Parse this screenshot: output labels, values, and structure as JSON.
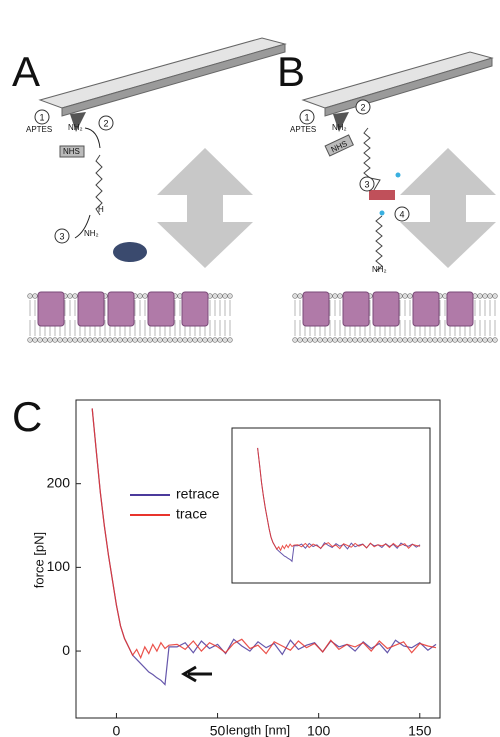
{
  "panels": {
    "A": {
      "label": "A",
      "steps": [
        "1",
        "2",
        "3"
      ],
      "aptes": "APTES",
      "amine": "NH₂",
      "nhs": "NHS",
      "aldehyde": "H",
      "protein_amine": "NH₂"
    },
    "B": {
      "label": "B",
      "steps": [
        "1",
        "2",
        "3",
        "4"
      ],
      "aptes": "APTES",
      "amine": "NH₂",
      "nhs": "NHS",
      "end_amine": "NH₂"
    },
    "C": {
      "label": "C"
    }
  },
  "chart_data": {
    "type": "line",
    "xlabel": "length [nm]",
    "ylabel": "force [pN]",
    "x": [
      -12,
      -10,
      -8,
      -6,
      -4,
      -2,
      0,
      2,
      4,
      6,
      8,
      10,
      12,
      14,
      16,
      18,
      20,
      22,
      24,
      26,
      30,
      34,
      38,
      42,
      46,
      50,
      54,
      58,
      62,
      66,
      70,
      74,
      78,
      82,
      86,
      90,
      94,
      98,
      102,
      106,
      110,
      114,
      118,
      122,
      126,
      130,
      134,
      138,
      142,
      146,
      150,
      154,
      158
    ],
    "series": [
      {
        "name": "retrace",
        "color": "#4b3a9c",
        "values": [
          290,
          240,
          190,
          150,
          115,
          85,
          55,
          30,
          15,
          5,
          -5,
          -10,
          -15,
          -20,
          -25,
          -28,
          -32,
          -35,
          -40,
          5,
          5,
          10,
          -2,
          12,
          3,
          8,
          -3,
          14,
          6,
          0,
          11,
          4,
          9,
          -4,
          13,
          2,
          7,
          10,
          -1,
          12,
          5,
          8,
          0,
          11,
          3,
          9,
          -2,
          13,
          6,
          4,
          10,
          1,
          8
        ]
      },
      {
        "name": "trace",
        "color": "#e8342c",
        "values": [
          290,
          240,
          190,
          150,
          115,
          85,
          55,
          30,
          15,
          5,
          -5,
          2,
          -8,
          5,
          -3,
          8,
          0,
          10,
          3,
          7,
          8,
          2,
          12,
          0,
          10,
          5,
          -2,
          9,
          14,
          3,
          7,
          -3,
          11,
          6,
          1,
          12,
          4,
          9,
          -1,
          13,
          2,
          8,
          5,
          10,
          0,
          12,
          3,
          7,
          11,
          -2,
          9,
          6,
          4
        ]
      }
    ],
    "xlim": [
      -20,
      160
    ],
    "ylim": [
      -80,
      300
    ],
    "xticks": [
      0,
      50,
      100,
      150
    ],
    "yticks": [
      0,
      100,
      200
    ],
    "legend": "upper-left",
    "inset": true
  }
}
